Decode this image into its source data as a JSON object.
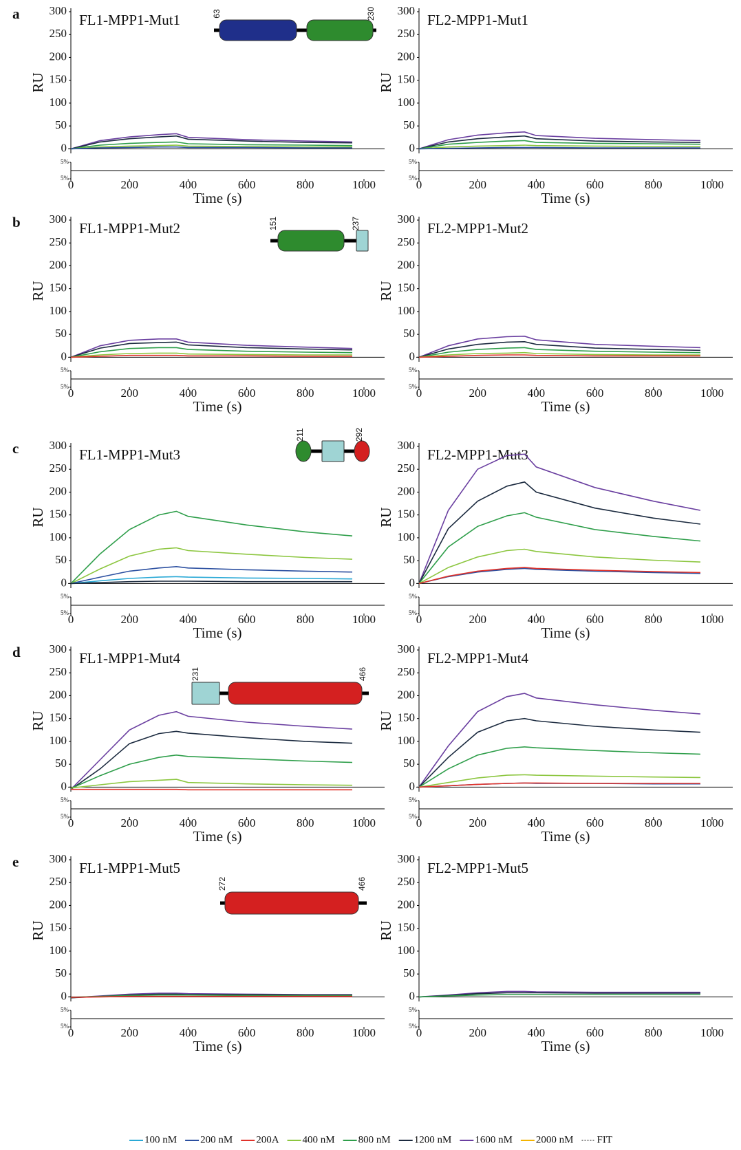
{
  "chart_data": [
    {
      "type": "line",
      "panel": "a",
      "title": "FL1-MPP1-Mut1",
      "annotations": [
        "63",
        "230"
      ],
      "xlabel": "Time (s)",
      "ylabel": "RU",
      "x": [
        0,
        100,
        200,
        300,
        360,
        400,
        600,
        800,
        960
      ],
      "xlim": [
        0,
        1000
      ],
      "xticks": [
        0,
        200,
        400,
        600,
        800,
        1000
      ],
      "ylim": [
        -10,
        300
      ],
      "yticks": [
        0,
        50,
        100,
        150,
        200,
        250,
        300
      ],
      "series": [
        {
          "name": "1600 nM",
          "values": [
            0,
            18,
            26,
            31,
            33,
            25,
            20,
            17,
            15
          ]
        },
        {
          "name": "1200 nM",
          "values": [
            0,
            15,
            22,
            26,
            28,
            21,
            17,
            14,
            13
          ]
        },
        {
          "name": "800 nM",
          "values": [
            0,
            8,
            12,
            14,
            15,
            11,
            9,
            8,
            7
          ]
        },
        {
          "name": "400 nM",
          "values": [
            0,
            4,
            6,
            7,
            8,
            6,
            5,
            4,
            4
          ]
        },
        {
          "name": "200 nM",
          "values": [
            0,
            2,
            3,
            4,
            4,
            3,
            3,
            2,
            2
          ]
        }
      ]
    },
    {
      "type": "line",
      "title": "FL2-MPP1-Mut1",
      "xlabel": "Time (s)",
      "ylabel": "RU",
      "x": [
        0,
        100,
        200,
        300,
        360,
        400,
        600,
        800,
        960
      ],
      "xlim": [
        0,
        1000
      ],
      "xticks": [
        0,
        200,
        400,
        600,
        800,
        1000
      ],
      "ylim": [
        -10,
        300
      ],
      "yticks": [
        0,
        50,
        100,
        150,
        200,
        250,
        300
      ],
      "series": [
        {
          "name": "1600 nM",
          "values": [
            0,
            20,
            30,
            35,
            37,
            29,
            23,
            20,
            18
          ]
        },
        {
          "name": "1200 nM",
          "values": [
            0,
            15,
            22,
            26,
            28,
            22,
            17,
            15,
            14
          ]
        },
        {
          "name": "800 nM",
          "values": [
            0,
            10,
            14,
            17,
            18,
            14,
            12,
            11,
            10
          ]
        },
        {
          "name": "400 nM",
          "values": [
            0,
            4,
            6,
            7,
            8,
            7,
            6,
            5,
            5
          ]
        },
        {
          "name": "200 nM",
          "values": [
            0,
            1,
            2,
            3,
            3,
            3,
            2,
            2,
            2
          ]
        }
      ]
    },
    {
      "type": "line",
      "panel": "b",
      "title": "FL1-MPP1-Mut2",
      "annotations": [
        "151",
        "237"
      ],
      "xlabel": "Time (s)",
      "ylabel": "RU",
      "x": [
        0,
        100,
        200,
        300,
        360,
        400,
        600,
        800,
        960
      ],
      "xlim": [
        0,
        1000
      ],
      "xticks": [
        0,
        200,
        400,
        600,
        800,
        1000
      ],
      "ylim": [
        -10,
        300
      ],
      "yticks": [
        0,
        50,
        100,
        150,
        200,
        250,
        300
      ],
      "series": [
        {
          "name": "1600 nM",
          "values": [
            0,
            25,
            37,
            40,
            40,
            33,
            26,
            22,
            19
          ]
        },
        {
          "name": "1200 nM",
          "values": [
            0,
            20,
            30,
            32,
            33,
            27,
            21,
            18,
            16
          ]
        },
        {
          "name": "800 nM",
          "values": [
            0,
            12,
            19,
            21,
            21,
            17,
            13,
            11,
            10
          ]
        },
        {
          "name": "400 nM",
          "values": [
            0,
            5,
            8,
            9,
            9,
            7,
            6,
            5,
            5
          ]
        },
        {
          "name": "200A",
          "values": [
            0,
            2,
            4,
            4,
            4,
            3,
            3,
            2,
            2
          ]
        }
      ]
    },
    {
      "type": "line",
      "title": "FL2-MPP1-Mut2",
      "xlabel": "Time (s)",
      "ylabel": "RU",
      "x": [
        0,
        100,
        200,
        300,
        360,
        400,
        600,
        800,
        960
      ],
      "xlim": [
        0,
        1000
      ],
      "xticks": [
        0,
        200,
        400,
        600,
        800,
        1000
      ],
      "ylim": [
        -10,
        300
      ],
      "yticks": [
        0,
        50,
        100,
        150,
        200,
        250,
        300
      ],
      "series": [
        {
          "name": "1600 nM",
          "values": [
            0,
            25,
            40,
            45,
            46,
            38,
            28,
            24,
            21
          ]
        },
        {
          "name": "1200 nM",
          "values": [
            0,
            18,
            28,
            33,
            34,
            28,
            20,
            17,
            15
          ]
        },
        {
          "name": "800 nM",
          "values": [
            0,
            11,
            17,
            20,
            21,
            17,
            13,
            11,
            10
          ]
        },
        {
          "name": "400 nM",
          "values": [
            0,
            5,
            8,
            9,
            10,
            8,
            6,
            5,
            5
          ]
        },
        {
          "name": "200A",
          "values": [
            0,
            2,
            4,
            5,
            5,
            4,
            3,
            3,
            3
          ]
        }
      ]
    },
    {
      "type": "line",
      "panel": "c",
      "title": "FL1-MPP1-Mut3",
      "annotations": [
        "211",
        "292"
      ],
      "xlabel": "Time (s)",
      "ylabel": "RU",
      "x": [
        0,
        100,
        200,
        300,
        360,
        400,
        600,
        800,
        960
      ],
      "xlim": [
        0,
        1000
      ],
      "xticks": [
        0,
        200,
        400,
        600,
        800,
        1000
      ],
      "ylim": [
        -10,
        300
      ],
      "yticks": [
        0,
        50,
        100,
        150,
        200,
        250,
        300
      ],
      "series": [
        {
          "name": "800 nM",
          "values": [
            0,
            65,
            118,
            150,
            158,
            147,
            128,
            113,
            104
          ]
        },
        {
          "name": "400 nM",
          "values": [
            0,
            32,
            60,
            75,
            78,
            72,
            64,
            57,
            53
          ]
        },
        {
          "name": "200 nM",
          "values": [
            0,
            14,
            27,
            34,
            37,
            34,
            30,
            27,
            25
          ]
        },
        {
          "name": "100 nM",
          "values": [
            0,
            6,
            11,
            14,
            15,
            14,
            12,
            11,
            10
          ]
        },
        {
          "name": "1200 nM",
          "values": [
            0,
            2,
            4,
            5,
            5,
            5,
            4,
            4,
            4
          ]
        }
      ]
    },
    {
      "type": "line",
      "title": "FL2-MPP1-Mut3",
      "xlabel": "Time (s)",
      "ylabel": "RU",
      "x": [
        0,
        100,
        200,
        300,
        360,
        400,
        600,
        800,
        960
      ],
      "xlim": [
        0,
        1000
      ],
      "xticks": [
        0,
        200,
        400,
        600,
        800,
        1000
      ],
      "ylim": [
        -10,
        300
      ],
      "yticks": [
        0,
        50,
        100,
        150,
        200,
        250,
        300
      ],
      "series": [
        {
          "name": "1600 nM",
          "values": [
            0,
            160,
            250,
            280,
            283,
            255,
            210,
            180,
            160
          ]
        },
        {
          "name": "1200 nM",
          "values": [
            0,
            120,
            180,
            213,
            222,
            200,
            165,
            143,
            130
          ]
        },
        {
          "name": "800 nM",
          "values": [
            0,
            80,
            125,
            148,
            155,
            145,
            118,
            103,
            93
          ]
        },
        {
          "name": "400 nM",
          "values": [
            0,
            35,
            58,
            72,
            75,
            70,
            58,
            51,
            47
          ]
        },
        {
          "name": "200 nM",
          "values": [
            0,
            15,
            25,
            31,
            33,
            31,
            27,
            24,
            22
          ]
        },
        {
          "name": "200A",
          "values": [
            0,
            16,
            27,
            33,
            35,
            33,
            29,
            26,
            24
          ]
        }
      ]
    },
    {
      "type": "line",
      "panel": "d",
      "title": "FL1-MPP1-Mut4",
      "annotations": [
        "231",
        "466"
      ],
      "xlabel": "Time (s)",
      "ylabel": "RU",
      "x": [
        0,
        100,
        200,
        300,
        360,
        400,
        600,
        800,
        960
      ],
      "xlim": [
        0,
        1000
      ],
      "xticks": [
        0,
        200,
        400,
        600,
        800,
        1000
      ],
      "ylim": [
        -10,
        300
      ],
      "yticks": [
        0,
        50,
        100,
        150,
        200,
        250,
        300
      ],
      "series": [
        {
          "name": "1600 nM",
          "values": [
            -5,
            60,
            125,
            157,
            165,
            155,
            142,
            133,
            127
          ]
        },
        {
          "name": "1200 nM",
          "values": [
            -5,
            40,
            95,
            117,
            122,
            118,
            108,
            100,
            96
          ]
        },
        {
          "name": "800 nM",
          "values": [
            -3,
            25,
            50,
            65,
            70,
            67,
            62,
            57,
            54
          ]
        },
        {
          "name": "400 nM",
          "values": [
            -2,
            5,
            12,
            15,
            17,
            10,
            7,
            5,
            4
          ]
        },
        {
          "name": "200A",
          "values": [
            -5,
            -5,
            -5,
            -5,
            -5,
            -6,
            -6,
            -6,
            -6
          ]
        }
      ]
    },
    {
      "type": "line",
      "title": "FL2-MPP1-Mut4",
      "xlabel": "Time (s)",
      "ylabel": "RU",
      "x": [
        0,
        100,
        200,
        300,
        360,
        400,
        600,
        800,
        960
      ],
      "xlim": [
        0,
        1000
      ],
      "xticks": [
        0,
        200,
        400,
        600,
        800,
        1000
      ],
      "ylim": [
        -10,
        300
      ],
      "yticks": [
        0,
        50,
        100,
        150,
        200,
        250,
        300
      ],
      "series": [
        {
          "name": "1600 nM",
          "values": [
            0,
            90,
            165,
            198,
            205,
            195,
            180,
            168,
            160
          ]
        },
        {
          "name": "1200 nM",
          "values": [
            0,
            65,
            120,
            145,
            150,
            145,
            133,
            125,
            120
          ]
        },
        {
          "name": "800 nM",
          "values": [
            0,
            40,
            70,
            85,
            88,
            86,
            80,
            75,
            72
          ]
        },
        {
          "name": "400 nM",
          "values": [
            0,
            10,
            20,
            26,
            27,
            26,
            24,
            22,
            21
          ]
        },
        {
          "name": "200 nM",
          "values": [
            0,
            3,
            6,
            8,
            9,
            8,
            8,
            7,
            7
          ]
        },
        {
          "name": "200A",
          "values": [
            0,
            3,
            6,
            8,
            9,
            9,
            8,
            8,
            8
          ]
        }
      ]
    },
    {
      "type": "line",
      "panel": "e",
      "title": "FL1-MPP1-Mut5",
      "annotations": [
        "272",
        "466"
      ],
      "xlabel": "Time (s)",
      "ylabel": "RU",
      "x": [
        0,
        100,
        200,
        300,
        360,
        400,
        600,
        800,
        960
      ],
      "xlim": [
        0,
        1000
      ],
      "xticks": [
        0,
        200,
        400,
        600,
        800,
        1000
      ],
      "ylim": [
        -10,
        300
      ],
      "yticks": [
        0,
        50,
        100,
        150,
        200,
        250,
        300
      ],
      "series": [
        {
          "name": "1600 nM",
          "values": [
            -2,
            2,
            6,
            8,
            8,
            7,
            6,
            5,
            5
          ]
        },
        {
          "name": "1200 nM",
          "values": [
            -2,
            1,
            4,
            6,
            6,
            5,
            5,
            4,
            4
          ]
        },
        {
          "name": "800 nM",
          "values": [
            -1,
            1,
            3,
            4,
            4,
            4,
            3,
            3,
            3
          ]
        },
        {
          "name": "200A",
          "values": [
            -1,
            0,
            1,
            1,
            1,
            1,
            1,
            1,
            1
          ]
        }
      ]
    },
    {
      "type": "line",
      "title": "FL2-MPP1-Mut5",
      "xlabel": "Time (s)",
      "ylabel": "RU",
      "x": [
        0,
        100,
        200,
        300,
        360,
        400,
        600,
        800,
        960
      ],
      "xlim": [
        0,
        1000
      ],
      "xticks": [
        0,
        200,
        400,
        600,
        800,
        1000
      ],
      "ylim": [
        -10,
        300
      ],
      "yticks": [
        0,
        50,
        100,
        150,
        200,
        250,
        300
      ],
      "series": [
        {
          "name": "1600 nM",
          "values": [
            0,
            4,
            9,
            12,
            12,
            11,
            10,
            10,
            10
          ]
        },
        {
          "name": "1200 nM",
          "values": [
            0,
            3,
            7,
            9,
            9,
            9,
            8,
            8,
            8
          ]
        },
        {
          "name": "800 nM",
          "values": [
            0,
            2,
            4,
            5,
            5,
            5,
            5,
            5,
            5
          ]
        }
      ]
    }
  ],
  "residual_ticks": [
    {
      "value": 5,
      "label": "5%"
    },
    {
      "value": -5,
      "label": "5%"
    }
  ],
  "legend": [
    {
      "name": "100 nM",
      "color": "#2aa9d6"
    },
    {
      "name": "200 nM",
      "color": "#2b4fa0"
    },
    {
      "name": "200A",
      "color": "#e0322a"
    },
    {
      "name": "400 nM",
      "color": "#8cc63f"
    },
    {
      "name": "800 nM",
      "color": "#2e9e4a"
    },
    {
      "name": "1200 nM",
      "color": "#1b2a3f"
    },
    {
      "name": "1600 nM",
      "color": "#6a3fa0"
    },
    {
      "name": "2000 nM",
      "color": "#f4b400"
    },
    {
      "name": "FIT",
      "color": "#888888",
      "style": "dotted"
    }
  ]
}
